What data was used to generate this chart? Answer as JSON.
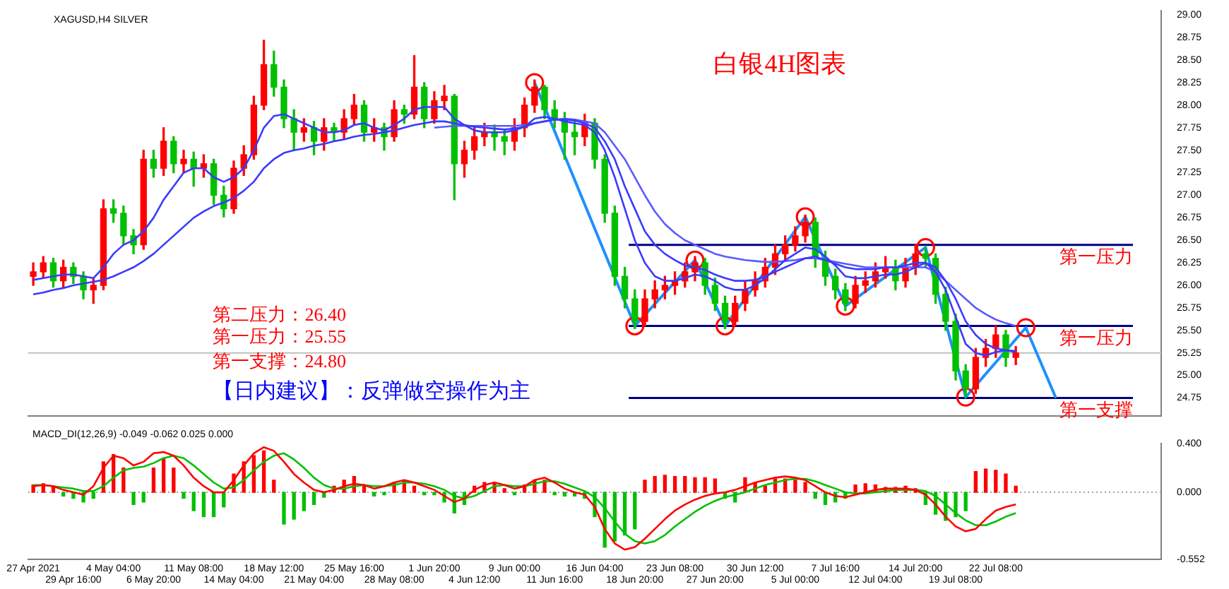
{
  "chart_data": [
    {
      "type": "candlestick",
      "title": "白银4H图表",
      "subtitle": "XAGUSD,H4 SILVER",
      "annotations": [
        "第二压力：26.40",
        "第一压力：25.55",
        "第一支撑：24.80",
        "【日内建议】：反弹做空操作为主"
      ],
      "categories": [
        null,
        null,
        null,
        null,
        null,
        null,
        null,
        null,
        null,
        null,
        null,
        null,
        null,
        null,
        null,
        null,
        null,
        null,
        null,
        null,
        null,
        null,
        null,
        null,
        null,
        null,
        null,
        null,
        null,
        null,
        null,
        null,
        null,
        null,
        null,
        null,
        null,
        null,
        null,
        null,
        null,
        null,
        null,
        null,
        null,
        null,
        null,
        null,
        null,
        null,
        null,
        null,
        null,
        null,
        null,
        null,
        null,
        null,
        null,
        null,
        null,
        null,
        null,
        null,
        null,
        null,
        null,
        null,
        null,
        null,
        null,
        null,
        null,
        null,
        null,
        null,
        null,
        null,
        null,
        null,
        null,
        null,
        null,
        null,
        null,
        null,
        null,
        null,
        null,
        null,
        null,
        null,
        null,
        null,
        null,
        null,
        null,
        null,
        null,
        null,
        null,
        null,
        null,
        null,
        null,
        null,
        null,
        null,
        null,
        null,
        null,
        null,
        null
      ],
      "ohlc": [
        [
          26.1,
          26.25,
          26.0,
          26.15
        ],
        [
          26.15,
          26.32,
          26.08,
          26.25
        ],
        [
          26.25,
          26.3,
          25.98,
          26.05
        ],
        [
          26.05,
          26.28,
          25.98,
          26.2
        ],
        [
          26.2,
          26.25,
          26.02,
          26.1
        ],
        [
          26.1,
          26.15,
          25.85,
          25.95
        ],
        [
          25.95,
          26.08,
          25.8,
          26.0
        ],
        [
          26.0,
          26.95,
          25.95,
          26.85
        ],
        [
          26.85,
          26.95,
          26.7,
          26.8
        ],
        [
          26.8,
          26.88,
          26.45,
          26.55
        ],
        [
          26.55,
          26.62,
          26.35,
          26.45
        ],
        [
          26.45,
          27.5,
          26.4,
          27.4
        ],
        [
          27.4,
          27.5,
          27.2,
          27.3
        ],
        [
          27.3,
          27.75,
          27.22,
          27.6
        ],
        [
          27.6,
          27.65,
          27.25,
          27.35
        ],
        [
          27.35,
          27.5,
          27.25,
          27.4
        ],
        [
          27.4,
          27.48,
          27.1,
          27.3
        ],
        [
          27.3,
          27.45,
          27.2,
          27.35
        ],
        [
          27.35,
          27.4,
          26.9,
          27.0
        ],
        [
          27.0,
          27.1,
          26.76,
          26.85
        ],
        [
          26.85,
          27.38,
          26.8,
          27.3
        ],
        [
          27.3,
          27.55,
          27.22,
          27.45
        ],
        [
          27.45,
          28.1,
          27.4,
          28.0
        ],
        [
          28.0,
          28.72,
          27.95,
          28.45
        ],
        [
          28.45,
          28.6,
          28.1,
          28.2
        ],
        [
          28.2,
          28.28,
          27.75,
          27.85
        ],
        [
          27.85,
          27.95,
          27.5,
          27.7
        ],
        [
          27.7,
          27.85,
          27.6,
          27.75
        ],
        [
          27.75,
          27.82,
          27.45,
          27.6
        ],
        [
          27.6,
          27.85,
          27.5,
          27.75
        ],
        [
          27.75,
          27.8,
          27.6,
          27.7
        ],
        [
          27.7,
          27.95,
          27.62,
          27.85
        ],
        [
          27.85,
          28.12,
          27.78,
          28.0
        ],
        [
          28.0,
          28.05,
          27.6,
          27.7
        ],
        [
          27.7,
          27.85,
          27.6,
          27.75
        ],
        [
          27.75,
          27.8,
          27.5,
          27.65
        ],
        [
          27.65,
          28.05,
          27.6,
          27.95
        ],
        [
          27.95,
          28.0,
          27.8,
          27.9
        ],
        [
          27.9,
          28.55,
          27.85,
          28.2
        ],
        [
          28.2,
          28.25,
          27.75,
          27.85
        ],
        [
          27.85,
          28.15,
          27.8,
          28.05
        ],
        [
          28.05,
          28.22,
          27.95,
          28.1
        ],
        [
          28.1,
          28.12,
          26.95,
          27.35
        ],
        [
          27.35,
          27.6,
          27.2,
          27.5
        ],
        [
          27.5,
          27.75,
          27.4,
          27.65
        ],
        [
          27.65,
          27.8,
          27.55,
          27.7
        ],
        [
          27.7,
          27.78,
          27.5,
          27.65
        ],
        [
          27.65,
          27.72,
          27.45,
          27.6
        ],
        [
          27.6,
          27.85,
          27.5,
          27.75
        ],
        [
          27.75,
          28.08,
          27.65,
          28.0
        ],
        [
          28.0,
          28.28,
          27.92,
          28.2
        ],
        [
          28.2,
          28.22,
          27.85,
          27.95
        ],
        [
          27.95,
          28.05,
          27.75,
          27.85
        ],
        [
          27.85,
          27.92,
          27.4,
          27.7
        ],
        [
          27.7,
          27.82,
          27.45,
          27.65
        ],
        [
          27.65,
          27.9,
          27.55,
          27.8
        ],
        [
          27.8,
          27.85,
          27.3,
          27.4
        ],
        [
          27.4,
          27.45,
          26.7,
          26.8
        ],
        [
          26.8,
          26.88,
          26.0,
          26.1
        ],
        [
          26.1,
          26.2,
          25.75,
          25.85
        ],
        [
          25.85,
          25.95,
          25.52,
          25.6
        ],
        [
          25.6,
          25.95,
          25.55,
          25.85
        ],
        [
          25.85,
          26.05,
          25.75,
          25.95
        ],
        [
          25.95,
          26.1,
          25.85,
          26.0
        ],
        [
          26.0,
          26.15,
          25.9,
          26.05
        ],
        [
          26.05,
          26.25,
          25.98,
          26.15
        ],
        [
          26.15,
          26.32,
          26.05,
          26.25
        ],
        [
          26.25,
          26.3,
          25.9,
          26.0
        ],
        [
          26.0,
          26.08,
          25.72,
          25.8
        ],
        [
          25.8,
          25.88,
          25.52,
          25.6
        ],
        [
          25.6,
          25.88,
          25.55,
          25.8
        ],
        [
          25.8,
          26.05,
          25.72,
          25.95
        ],
        [
          25.95,
          26.15,
          25.88,
          26.05
        ],
        [
          26.05,
          26.3,
          25.98,
          26.2
        ],
        [
          26.2,
          26.45,
          26.12,
          26.35
        ],
        [
          26.35,
          26.55,
          26.28,
          26.45
        ],
        [
          26.45,
          26.65,
          26.38,
          26.55
        ],
        [
          26.55,
          26.78,
          26.48,
          26.7
        ],
        [
          26.7,
          26.75,
          26.2,
          26.3
        ],
        [
          26.3,
          26.38,
          26.0,
          26.1
        ],
        [
          26.1,
          26.18,
          25.85,
          25.95
        ],
        [
          25.95,
          26.02,
          25.72,
          25.8
        ],
        [
          25.8,
          26.1,
          25.75,
          26.0
        ],
        [
          26.0,
          26.15,
          25.92,
          26.05
        ],
        [
          26.05,
          26.25,
          25.98,
          26.15
        ],
        [
          26.15,
          26.32,
          26.08,
          26.2
        ],
        [
          26.2,
          26.28,
          25.95,
          26.05
        ],
        [
          26.05,
          26.3,
          25.98,
          26.2
        ],
        [
          26.2,
          26.45,
          26.12,
          26.35
        ],
        [
          26.35,
          26.42,
          26.2,
          26.3
        ],
        [
          26.3,
          26.35,
          25.8,
          25.9
        ],
        [
          25.9,
          25.98,
          25.5,
          25.6
        ],
        [
          25.6,
          25.68,
          24.95,
          25.05
        ],
        [
          25.05,
          25.12,
          24.76,
          24.85
        ],
        [
          24.85,
          25.3,
          24.8,
          25.2
        ],
        [
          25.2,
          25.4,
          25.1,
          25.3
        ],
        [
          25.3,
          25.55,
          25.2,
          25.45
        ],
        [
          25.45,
          25.5,
          25.1,
          25.2
        ],
        [
          25.2,
          25.32,
          25.12,
          25.25
        ],
        null,
        null,
        null,
        null,
        null,
        null,
        null,
        null,
        null,
        null,
        null,
        null,
        null,
        null
      ],
      "colors": [
        "#ff0000",
        "#ff0000",
        "#00c000",
        "#ff0000",
        "#00c000",
        "#00c000",
        "#ff0000",
        "#ff0000",
        "#00c000",
        "#00c000",
        "#00c000",
        "#ff0000",
        "#00c000",
        "#ff0000",
        "#00c000",
        "#ff0000",
        "#00c000",
        "#ff0000",
        "#00c000",
        "#00c000",
        "#ff0000",
        "#ff0000",
        "#ff0000",
        "#ff0000",
        "#00c000",
        "#00c000",
        "#00c000",
        "#ff0000",
        "#00c000",
        "#ff0000",
        "#00c000",
        "#ff0000",
        "#ff0000",
        "#00c000",
        "#ff0000",
        "#00c000",
        "#ff0000",
        "#00c000",
        "#ff0000",
        "#00c000",
        "#ff0000",
        "#ff0000",
        "#00c000",
        "#ff0000",
        "#ff0000",
        "#ff0000",
        "#00c000",
        "#00c000",
        "#ff0000",
        "#ff0000",
        "#ff0000",
        "#00c000",
        "#00c000",
        "#00c000",
        "#00c000",
        "#ff0000",
        "#00c000",
        "#00c000",
        "#00c000",
        "#00c000",
        "#00c000",
        "#ff0000",
        "#ff0000",
        "#ff0000",
        "#ff0000",
        "#ff0000",
        "#ff0000",
        "#00c000",
        "#00c000",
        "#00c000",
        "#ff0000",
        "#ff0000",
        "#ff0000",
        "#ff0000",
        "#ff0000",
        "#ff0000",
        "#ff0000",
        "#ff0000",
        "#00c000",
        "#00c000",
        "#00c000",
        "#00c000",
        "#ff0000",
        "#ff0000",
        "#ff0000",
        "#ff0000",
        "#00c000",
        "#ff0000",
        "#ff0000",
        "#00c000",
        "#00c000",
        "#00c000",
        "#00c000",
        "#00c000",
        "#ff0000",
        "#ff0000",
        "#ff0000",
        "#00c000",
        "#ff0000",
        null,
        null,
        null,
        null,
        null,
        null,
        null,
        null,
        null,
        null,
        null,
        null,
        null,
        null
      ],
      "series": [
        {
          "type": "line",
          "color": "#3a3aff",
          "values": [
            26.06,
            26.08,
            26.1,
            26.12,
            26.12,
            26.1,
            26.08,
            26.2,
            26.35,
            26.45,
            26.5,
            26.6,
            26.75,
            26.95,
            27.1,
            27.25,
            27.3,
            27.3,
            27.2,
            27.15,
            27.2,
            27.3,
            27.5,
            27.75,
            27.88,
            27.9,
            27.85,
            27.8,
            27.75,
            27.7,
            27.7,
            27.72,
            27.78,
            27.8,
            27.75,
            27.72,
            27.78,
            27.85,
            27.95,
            27.98,
            27.98,
            27.98,
            27.85,
            27.78,
            27.72,
            27.7,
            27.7,
            27.7,
            27.72,
            27.76,
            27.85,
            27.87,
            27.85,
            27.82,
            27.8,
            27.78,
            27.7,
            27.5,
            27.2,
            26.85,
            26.5,
            26.25,
            26.1,
            26.05,
            26.05,
            26.08,
            26.12,
            26.1,
            26.05,
            25.98,
            25.95,
            25.95,
            26.0,
            26.08,
            26.18,
            26.28,
            26.35,
            26.42,
            26.4,
            26.32,
            26.22,
            26.1,
            26.08,
            26.08,
            26.1,
            26.12,
            26.12,
            26.15,
            26.2,
            26.25,
            26.15,
            25.95,
            25.65,
            25.35,
            25.25,
            25.22,
            25.26,
            25.28,
            25.27,
            null,
            null,
            null,
            null,
            null,
            null,
            null,
            null,
            null,
            null,
            null,
            null,
            null,
            null
          ]
        },
        {
          "type": "line",
          "color": "#3a3aff",
          "values": [
            25.9,
            25.92,
            25.95,
            25.97,
            26.0,
            26.02,
            26.04,
            26.06,
            26.1,
            26.15,
            26.2,
            26.27,
            26.35,
            26.45,
            26.55,
            26.65,
            26.75,
            26.82,
            26.88,
            26.92,
            26.97,
            27.05,
            27.15,
            27.3,
            27.4,
            27.47,
            27.5,
            27.52,
            27.55,
            27.57,
            27.6,
            27.62,
            27.65,
            27.67,
            27.68,
            27.7,
            27.72,
            27.75,
            27.78,
            27.8,
            27.82,
            27.82,
            27.8,
            27.78,
            27.76,
            27.75,
            27.74,
            27.73,
            27.74,
            27.76,
            27.8,
            27.82,
            27.84,
            27.84,
            27.83,
            27.8,
            27.75,
            27.6,
            27.4,
            27.1,
            26.85,
            26.6,
            26.45,
            26.35,
            26.28,
            26.22,
            26.2,
            26.17,
            26.12,
            26.08,
            26.05,
            26.05,
            26.06,
            26.1,
            26.15,
            26.2,
            26.25,
            26.3,
            26.32,
            26.28,
            26.24,
            26.2,
            26.18,
            26.18,
            26.18,
            26.2,
            26.2,
            26.22,
            26.25,
            26.25,
            26.2,
            26.05,
            25.85,
            25.6,
            25.45,
            25.35,
            25.3,
            25.28,
            25.26,
            null,
            null,
            null,
            null,
            null,
            null,
            null,
            null,
            null,
            null,
            null,
            null,
            null,
            null
          ]
        },
        {
          "type": "line",
          "color": "#5a5aff",
          "values": [
            null,
            null,
            null,
            null,
            null,
            null,
            null,
            null,
            null,
            null,
            null,
            null,
            null,
            null,
            null,
            null,
            null,
            null,
            null,
            null,
            null,
            null,
            null,
            null,
            null,
            null,
            null,
            null,
            null,
            null,
            null,
            null,
            null,
            null,
            null,
            null,
            null,
            null,
            null,
            null,
            27.75,
            27.76,
            27.77,
            27.77,
            27.77,
            27.77,
            27.77,
            27.77,
            27.77,
            27.78,
            27.8,
            27.82,
            27.84,
            27.85,
            27.84,
            27.82,
            27.8,
            27.7,
            27.55,
            27.4,
            27.2,
            27.0,
            26.82,
            26.68,
            26.58,
            26.5,
            26.45,
            26.4,
            26.35,
            26.32,
            26.3,
            26.28,
            26.27,
            26.26,
            26.26,
            26.27,
            26.28,
            26.3,
            26.3,
            26.28,
            26.26,
            26.24,
            26.22,
            26.2,
            26.2,
            26.2,
            26.2,
            26.2,
            26.2,
            26.2,
            26.15,
            26.05,
            25.95,
            25.85,
            25.75,
            25.68,
            25.62,
            25.58,
            25.55,
            null,
            null,
            null,
            null,
            null,
            null,
            null,
            null,
            null,
            null,
            null,
            null,
            null,
            null
          ]
        },
        {
          "type": "line",
          "color": "#1e90ff",
          "values": [
            null,
            null,
            null,
            null,
            null,
            null,
            null,
            null,
            null,
            null,
            null,
            null,
            null,
            null,
            null,
            null,
            null,
            null,
            null,
            null,
            null,
            null,
            null,
            null,
            null,
            null,
            null,
            null,
            null,
            null,
            null,
            null,
            null,
            null,
            null,
            null,
            null,
            null,
            null,
            null,
            null,
            null,
            null,
            null,
            null,
            null,
            null,
            null,
            null,
            null,
            28.25,
            null,
            null,
            null,
            null,
            null,
            null,
            null,
            null,
            null,
            25.55,
            null,
            null,
            null,
            null,
            null,
            26.28,
            null,
            null,
            25.55,
            null,
            null,
            null,
            null,
            null,
            null,
            null,
            26.76,
            null,
            null,
            null,
            25.77,
            null,
            null,
            null,
            null,
            null,
            null,
            null,
            26.42,
            null,
            null,
            null,
            24.76,
            null,
            null,
            null,
            null,
            null,
            25.53,
            null,
            null,
            24.75,
            null,
            null,
            null,
            null,
            null,
            null,
            null,
            null,
            null,
            null
          ]
        },
        {
          "type": "scatter",
          "color": "#ff0000",
          "marker": "circle",
          "values": [
            null,
            null,
            null,
            null,
            null,
            null,
            null,
            null,
            null,
            null,
            null,
            null,
            null,
            null,
            null,
            null,
            null,
            null,
            null,
            null,
            null,
            null,
            null,
            null,
            null,
            null,
            null,
            null,
            null,
            null,
            null,
            null,
            null,
            null,
            null,
            null,
            null,
            null,
            null,
            null,
            null,
            null,
            null,
            null,
            null,
            null,
            null,
            null,
            null,
            null,
            28.25,
            null,
            null,
            null,
            null,
            null,
            null,
            null,
            null,
            null,
            25.55,
            null,
            null,
            null,
            null,
            null,
            26.28,
            null,
            null,
            25.55,
            null,
            null,
            null,
            null,
            null,
            null,
            null,
            26.76,
            null,
            null,
            null,
            25.77,
            null,
            null,
            null,
            null,
            null,
            null,
            null,
            26.42,
            null,
            null,
            null,
            24.76,
            null,
            null,
            null,
            null,
            null,
            25.53,
            null,
            null,
            null,
            null,
            null,
            null,
            null,
            null,
            null,
            null,
            null,
            null,
            null
          ]
        }
      ],
      "ylim": [
        24.55,
        29.05
      ],
      "yticks": [
        {
          "value": 29,
          "label": "29.00"
        },
        {
          "value": 28.75,
          "label": "28.75"
        },
        {
          "value": 28.5,
          "label": "28.50"
        },
        {
          "value": 28.25,
          "label": "28.25"
        },
        {
          "value": 28,
          "label": "28.00"
        },
        {
          "value": 27.75,
          "label": "27.75"
        },
        {
          "value": 27.5,
          "label": "27.50"
        },
        {
          "value": 27.25,
          "label": "27.25"
        },
        {
          "value": 27,
          "label": "27.00"
        },
        {
          "value": 26.75,
          "label": "26.75"
        },
        {
          "value": 26.5,
          "label": "26.50"
        },
        {
          "value": 26.25,
          "label": "26.25"
        },
        {
          "value": 26,
          "label": "26.00"
        },
        {
          "value": 25.75,
          "label": "25.75"
        },
        {
          "value": 25.5,
          "label": "25.50"
        },
        {
          "value": 25.25,
          "label": "25.25"
        },
        {
          "value": 25,
          "label": "25.00"
        },
        {
          "value": 24.75,
          "label": "24.75"
        }
      ],
      "ref_lines": [
        {
          "axis": "y",
          "value": 26.45,
          "label": "第一压力",
          "color": "#000080"
        },
        {
          "axis": "y",
          "value": 25.55,
          "label": "第一压力",
          "color": "#000080"
        },
        {
          "axis": "y",
          "value": 24.75,
          "label": "第一支撑",
          "color": "#000080"
        },
        {
          "axis": "y",
          "value": 25.25,
          "color": "#c0c0c0"
        }
      ],
      "tick_labels": "y",
      "legend": false
    },
    {
      "type": "bar",
      "title": "MACD_DI(12,26,9) -0.049 -0.062 0.025 0.000",
      "categories": [
        "27 Apr 2021",
        null,
        null,
        null,
        "29 Apr 16:00",
        null,
        null,
        null,
        "4 May 04:00",
        null,
        null,
        null,
        "6 May 20:00",
        null,
        null,
        null,
        "11 May 08:00",
        null,
        null,
        null,
        "14 May 04:00",
        null,
        null,
        null,
        "18 May 12:00",
        null,
        null,
        null,
        "21 May 04:00",
        null,
        null,
        null,
        "25 May 16:00",
        null,
        null,
        null,
        "28 May 08:00",
        null,
        null,
        null,
        "1 Jun 20:00",
        null,
        null,
        null,
        "4 Jun 12:00",
        null,
        null,
        null,
        "9 Jun 00:00",
        null,
        null,
        null,
        "11 Jun 16:00",
        null,
        null,
        null,
        "16 Jun 04:00",
        null,
        null,
        null,
        "18 Jun 20:00",
        null,
        null,
        null,
        "23 Jun 08:00",
        null,
        null,
        null,
        "27 Jun 20:00",
        null,
        null,
        null,
        "30 Jun 12:00",
        null,
        null,
        null,
        "5 Jul 00:00",
        null,
        null,
        null,
        "7 Jul 16:00",
        null,
        null,
        null,
        "12 Jul 04:00",
        null,
        null,
        null,
        "14 Jul 20:00",
        null,
        null,
        null,
        "19 Jul 08:00",
        null,
        null,
        null,
        "22 Jul 08:00",
        null,
        null,
        null,
        null,
        null,
        null,
        null,
        null,
        null,
        null,
        null,
        null,
        null,
        null,
        null,
        null
      ],
      "series": [
        {
          "type": "bar",
          "values": [
            0.06,
            0.07,
            0.05,
            -0.03,
            -0.05,
            -0.08,
            -0.05,
            0.25,
            0.31,
            0.2,
            -0.1,
            -0.08,
            0.2,
            0.28,
            0.2,
            -0.05,
            -0.15,
            -0.2,
            -0.2,
            -0.12,
            0.15,
            0.25,
            0.3,
            0.34,
            0.1,
            -0.26,
            -0.22,
            -0.15,
            -0.1,
            -0.04,
            0.05,
            0.1,
            0.13,
            0.05,
            -0.03,
            -0.02,
            0.08,
            0.1,
            0.05,
            -0.02,
            -0.02,
            -0.08,
            -0.17,
            -0.1,
            0.05,
            0.08,
            0.08,
            0.03,
            -0.02,
            0.06,
            0.1,
            0.1,
            -0.02,
            -0.03,
            -0.03,
            -0.05,
            -0.2,
            -0.45,
            -0.4,
            -0.35,
            -0.3,
            0.1,
            0.13,
            0.14,
            0.13,
            0.13,
            0.12,
            0.12,
            0.11,
            -0.05,
            -0.08,
            0.12,
            0.08,
            0.05,
            0.11,
            0.11,
            0.1,
            0.08,
            -0.05,
            -0.1,
            -0.08,
            -0.05,
            0.06,
            0.07,
            0.06,
            0.04,
            0.04,
            0.05,
            0.03,
            -0.1,
            -0.18,
            -0.23,
            -0.2,
            -0.15,
            0.17,
            0.19,
            0.18,
            0.15,
            0.05,
            null,
            null,
            null,
            null,
            null,
            null,
            null,
            null,
            null,
            null,
            null,
            null,
            null,
            null
          ],
          "colors": [
            "#ff0000",
            "#ff0000",
            "#ff0000",
            "#00c000",
            "#00c000",
            "#00c000",
            "#00c000",
            "#ff0000",
            "#ff0000",
            "#ff0000",
            "#00c000",
            "#00c000",
            "#ff0000",
            "#ff0000",
            "#ff0000",
            "#00c000",
            "#00c000",
            "#00c000",
            "#00c000",
            "#00c000",
            "#ff0000",
            "#ff0000",
            "#ff0000",
            "#ff0000",
            "#ff0000",
            "#00c000",
            "#00c000",
            "#00c000",
            "#00c000",
            "#00c000",
            "#ff0000",
            "#ff0000",
            "#ff0000",
            "#ff0000",
            "#00c000",
            "#00c000",
            "#ff0000",
            "#ff0000",
            "#ff0000",
            "#00c000",
            "#00c000",
            "#00c000",
            "#00c000",
            "#00c000",
            "#ff0000",
            "#ff0000",
            "#ff0000",
            "#ff0000",
            "#00c000",
            "#ff0000",
            "#ff0000",
            "#ff0000",
            "#00c000",
            "#00c000",
            "#00c000",
            "#00c000",
            "#00c000",
            "#00c000",
            "#00c000",
            "#00c000",
            "#00c000",
            "#ff0000",
            "#ff0000",
            "#ff0000",
            "#ff0000",
            "#ff0000",
            "#ff0000",
            "#ff0000",
            "#ff0000",
            "#00c000",
            "#00c000",
            "#ff0000",
            "#ff0000",
            "#ff0000",
            "#ff0000",
            "#ff0000",
            "#ff0000",
            "#ff0000",
            "#00c000",
            "#00c000",
            "#00c000",
            "#00c000",
            "#ff0000",
            "#ff0000",
            "#ff0000",
            "#ff0000",
            "#ff0000",
            "#ff0000",
            "#ff0000",
            "#00c000",
            "#00c000",
            "#00c000",
            "#00c000",
            "#00c000",
            "#ff0000",
            "#ff0000",
            "#ff0000",
            "#ff0000",
            "#ff0000",
            null,
            null,
            null,
            null,
            null,
            null,
            null,
            null,
            null,
            null,
            null,
            null,
            null,
            null
          ]
        },
        {
          "type": "line",
          "color": "#ff0000",
          "values": [
            0.05,
            0.06,
            0.05,
            0.02,
            0.0,
            -0.02,
            0.05,
            0.2,
            0.3,
            0.28,
            0.22,
            0.25,
            0.32,
            0.33,
            0.3,
            0.22,
            0.12,
            0.05,
            0.0,
            0.0,
            0.1,
            0.22,
            0.32,
            0.37,
            0.34,
            0.25,
            0.15,
            0.08,
            0.02,
            0.0,
            0.02,
            0.05,
            0.07,
            0.06,
            0.03,
            0.05,
            0.08,
            0.1,
            0.08,
            0.05,
            0.02,
            -0.03,
            -0.08,
            -0.05,
            0.02,
            0.06,
            0.08,
            0.06,
            0.03,
            0.05,
            0.1,
            0.12,
            0.08,
            0.03,
            0.0,
            -0.02,
            -0.12,
            -0.3,
            -0.42,
            -0.47,
            -0.45,
            -0.38,
            -0.3,
            -0.22,
            -0.15,
            -0.1,
            -0.06,
            -0.03,
            -0.01,
            0.0,
            0.02,
            0.05,
            0.08,
            0.1,
            0.12,
            0.13,
            0.12,
            0.1,
            0.05,
            0.0,
            -0.03,
            -0.04,
            -0.02,
            0.0,
            0.02,
            0.03,
            0.03,
            0.03,
            0.02,
            -0.02,
            -0.1,
            -0.2,
            -0.28,
            -0.32,
            -0.3,
            -0.22,
            -0.15,
            -0.12,
            -0.1,
            null,
            null,
            null,
            null,
            null,
            null,
            null,
            null,
            null,
            null,
            null,
            null,
            null,
            null
          ]
        },
        {
          "type": "line",
          "color": "#00c000",
          "values": [
            0.06,
            0.06,
            0.05,
            0.04,
            0.03,
            0.01,
            0.01,
            0.05,
            0.12,
            0.18,
            0.2,
            0.21,
            0.24,
            0.28,
            0.3,
            0.28,
            0.22,
            0.15,
            0.08,
            0.03,
            0.04,
            0.1,
            0.18,
            0.25,
            0.3,
            0.32,
            0.27,
            0.2,
            0.12,
            0.06,
            0.03,
            0.03,
            0.05,
            0.06,
            0.05,
            0.05,
            0.06,
            0.08,
            0.08,
            0.07,
            0.05,
            0.02,
            -0.03,
            -0.05,
            -0.03,
            0.01,
            0.05,
            0.06,
            0.05,
            0.05,
            0.07,
            0.09,
            0.09,
            0.07,
            0.04,
            0.01,
            -0.04,
            -0.13,
            -0.24,
            -0.34,
            -0.4,
            -0.42,
            -0.4,
            -0.35,
            -0.28,
            -0.22,
            -0.16,
            -0.11,
            -0.07,
            -0.04,
            -0.02,
            0.0,
            0.03,
            0.06,
            0.08,
            0.1,
            0.11,
            0.11,
            0.09,
            0.06,
            0.03,
            0.0,
            -0.01,
            -0.01,
            0.0,
            0.01,
            0.02,
            0.02,
            0.02,
            0.01,
            -0.03,
            -0.1,
            -0.17,
            -0.23,
            -0.27,
            -0.27,
            -0.24,
            -0.2,
            -0.17,
            null,
            null,
            null,
            null,
            null,
            null,
            null,
            null,
            null,
            null,
            null,
            null,
            null,
            null
          ]
        }
      ],
      "ylim": [
        -0.552,
        0.4
      ],
      "yticks": [
        {
          "value": 0.4,
          "label": "0.400"
        },
        {
          "value": 0,
          "label": "0.000"
        },
        {
          "value": -0.552,
          "label": "-0.552"
        }
      ],
      "ref_lines": [
        {
          "axis": "y",
          "value": 0,
          "color": "#a0a0a0",
          "line_style": "dotted"
        }
      ],
      "legend": false
    }
  ]
}
